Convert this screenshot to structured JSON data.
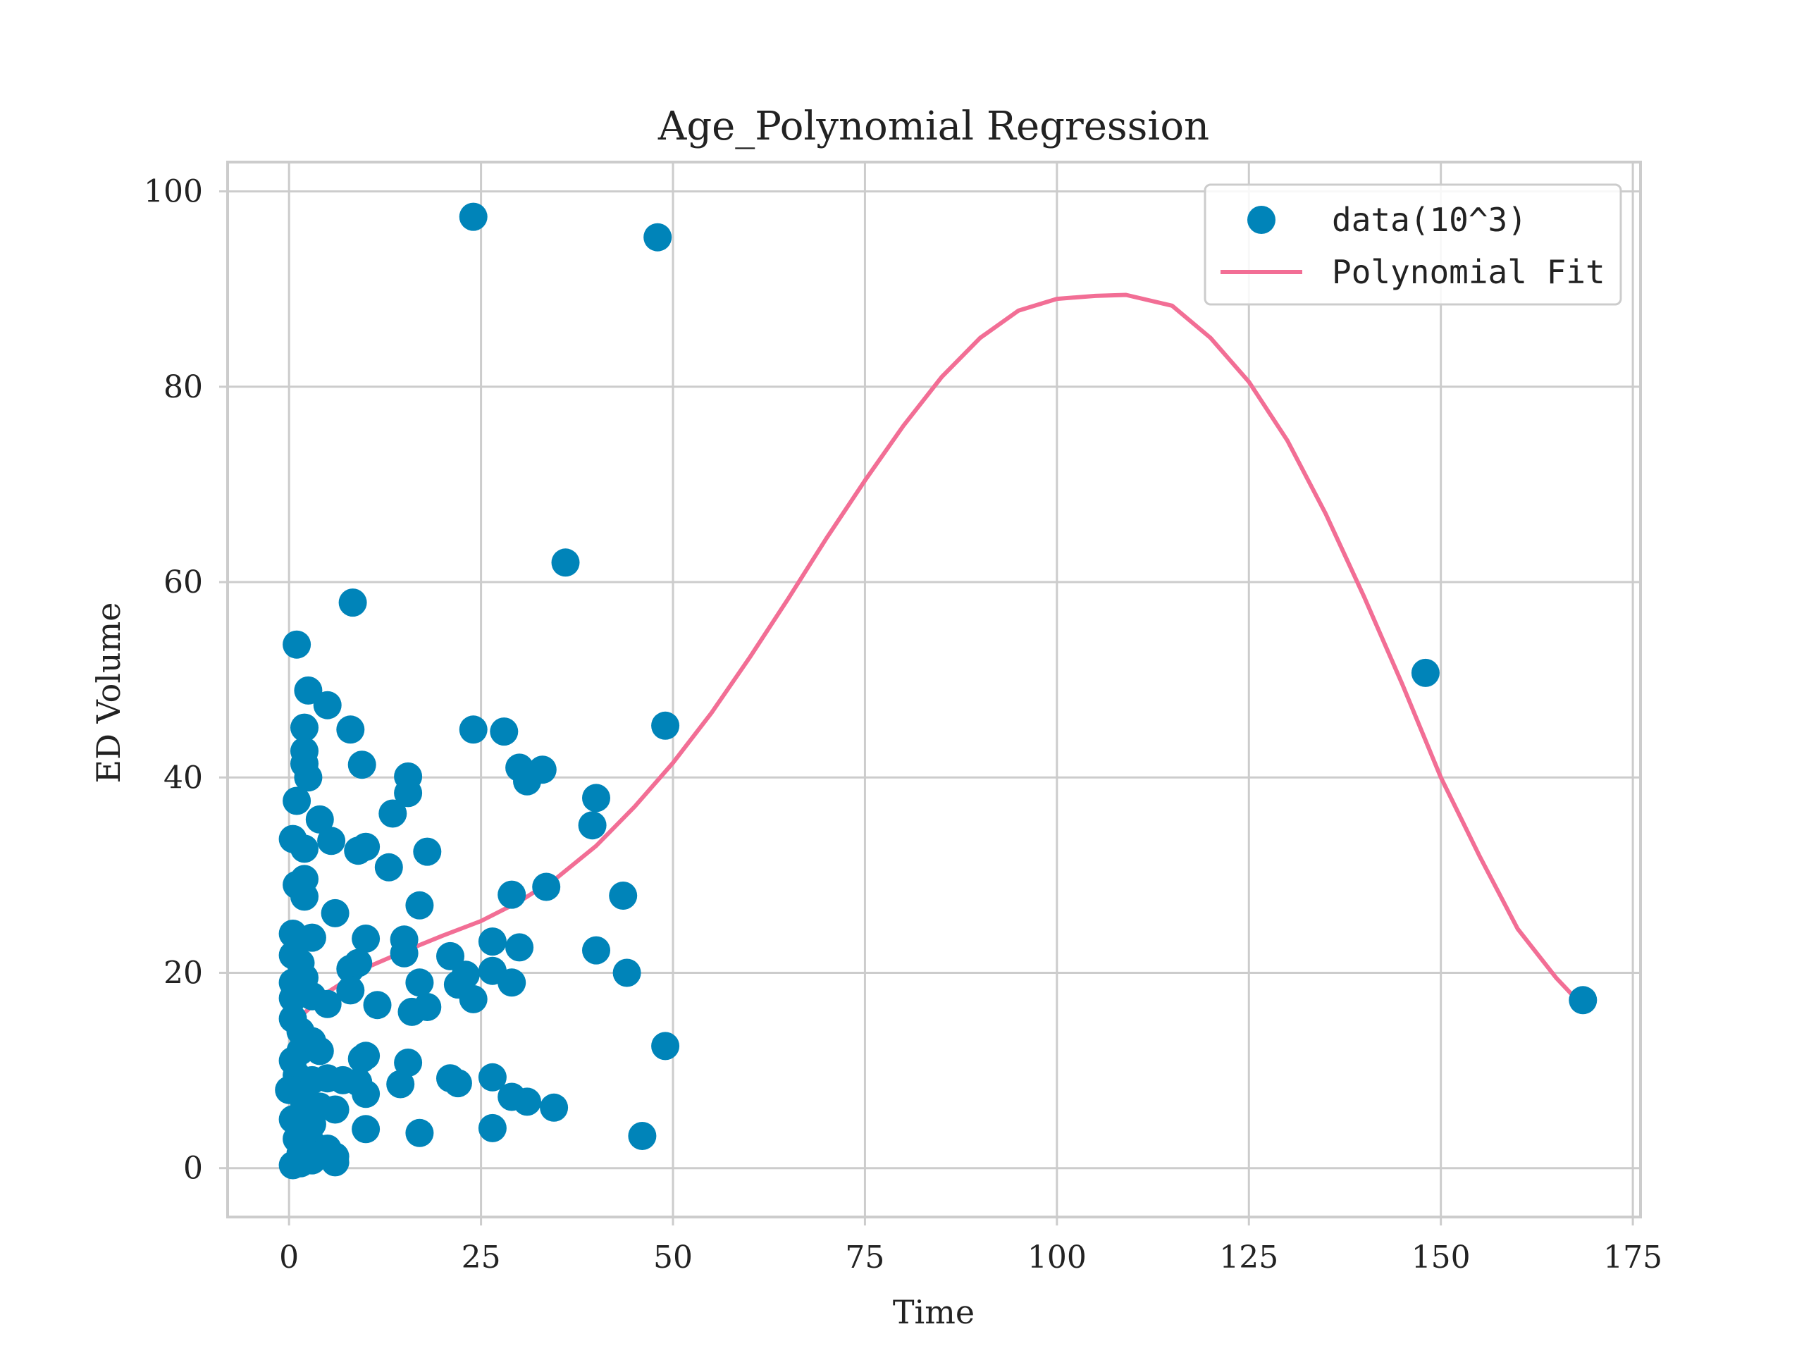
{
  "chart_data": {
    "type": "scatter",
    "title": "Age_Polynomial Regression",
    "xlabel": "Time",
    "ylabel": "ED Volume",
    "xlim": [
      -8,
      176
    ],
    "ylim": [
      -5,
      103
    ],
    "xticks": [
      0,
      25,
      50,
      75,
      100,
      125,
      150,
      175
    ],
    "yticks": [
      0,
      20,
      40,
      60,
      80,
      100
    ],
    "grid": true,
    "legend_position": "top-right",
    "colors": {
      "scatter": "#0084b9",
      "fit": "#f26e95",
      "grid": "#cccccc"
    },
    "series": [
      {
        "name": "data(10^3)",
        "kind": "scatter",
        "points": [
          [
            24,
            97.4
          ],
          [
            48,
            95.3
          ],
          [
            36,
            62
          ],
          [
            8.3,
            57.9
          ],
          [
            1,
            53.6
          ],
          [
            2.5,
            48.9
          ],
          [
            5,
            47.4
          ],
          [
            2,
            45.1
          ],
          [
            8,
            44.9
          ],
          [
            24,
            44.9
          ],
          [
            28,
            44.7
          ],
          [
            49,
            45.3
          ],
          [
            2,
            42.7
          ],
          [
            2,
            41.4
          ],
          [
            2.5,
            40
          ],
          [
            9.5,
            41.3
          ],
          [
            15.5,
            40.1
          ],
          [
            30,
            41
          ],
          [
            31,
            39.6
          ],
          [
            33,
            40.8
          ],
          [
            15.5,
            38.4
          ],
          [
            1,
            37.6
          ],
          [
            40,
            37.9
          ],
          [
            4,
            35.7
          ],
          [
            13.5,
            36.3
          ],
          [
            39.5,
            35.1
          ],
          [
            0.5,
            33.7
          ],
          [
            2,
            32.7
          ],
          [
            5.5,
            33.5
          ],
          [
            9,
            32.5
          ],
          [
            10,
            32.9
          ],
          [
            13,
            30.8
          ],
          [
            18,
            32.4
          ],
          [
            1,
            29
          ],
          [
            2,
            29.6
          ],
          [
            2,
            27.8
          ],
          [
            6,
            26.1
          ],
          [
            17,
            26.9
          ],
          [
            29,
            28
          ],
          [
            33.5,
            28.8
          ],
          [
            43.5,
            27.9
          ],
          [
            0.5,
            24
          ],
          [
            3,
            23.6
          ],
          [
            10,
            23.5
          ],
          [
            15,
            23.4
          ],
          [
            26.5,
            23.2
          ],
          [
            30,
            22.6
          ],
          [
            0.5,
            21.8
          ],
          [
            1.5,
            21
          ],
          [
            8,
            20.4
          ],
          [
            9,
            21
          ],
          [
            15,
            22
          ],
          [
            21,
            21.7
          ],
          [
            23,
            19.8
          ],
          [
            26.5,
            20.2
          ],
          [
            40,
            22.3
          ],
          [
            44,
            20
          ],
          [
            0.5,
            19
          ],
          [
            2,
            19.5
          ],
          [
            8,
            18.2
          ],
          [
            17,
            19
          ],
          [
            22,
            18.8
          ],
          [
            29,
            19
          ],
          [
            0.5,
            17.4
          ],
          [
            3,
            17.6
          ],
          [
            5,
            16.8
          ],
          [
            11.5,
            16.7
          ],
          [
            16,
            16
          ],
          [
            18,
            16.5
          ],
          [
            24,
            17.3
          ],
          [
            0.5,
            15.3
          ],
          [
            1.5,
            14
          ],
          [
            3,
            13
          ],
          [
            0.5,
            11
          ],
          [
            1.5,
            12
          ],
          [
            4,
            12
          ],
          [
            9.5,
            11.2
          ],
          [
            10,
            11.5
          ],
          [
            15.5,
            10.8
          ],
          [
            49,
            12.5
          ],
          [
            1,
            9.5
          ],
          [
            3,
            9
          ],
          [
            5,
            9.2
          ],
          [
            7,
            9
          ],
          [
            9,
            8.8
          ],
          [
            14.5,
            8.6
          ],
          [
            21,
            9.2
          ],
          [
            22,
            8.7
          ],
          [
            26.5,
            9.3
          ],
          [
            0,
            8
          ],
          [
            2,
            7.5
          ],
          [
            10,
            7.6
          ],
          [
            29,
            7.3
          ],
          [
            31,
            6.8
          ],
          [
            2,
            6.5
          ],
          [
            4,
            6.3
          ],
          [
            6,
            6
          ],
          [
            34.5,
            6.2
          ],
          [
            0.5,
            5
          ],
          [
            3,
            4.5
          ],
          [
            10,
            4
          ],
          [
            17,
            3.6
          ],
          [
            26.5,
            4.1
          ],
          [
            46,
            3.3
          ],
          [
            1,
            3
          ],
          [
            3,
            2.5
          ],
          [
            5,
            2
          ],
          [
            1.5,
            1.5
          ],
          [
            2.5,
            1.2
          ],
          [
            4,
            1.4
          ],
          [
            6,
            1.2
          ],
          [
            0.5,
            0.3
          ],
          [
            1.5,
            0.5
          ],
          [
            3,
            0.8
          ],
          [
            6,
            0.6
          ],
          [
            148,
            50.7
          ],
          [
            168.5,
            17.2
          ]
        ]
      },
      {
        "name": "Polynomial Fit",
        "kind": "line",
        "points": [
          [
            0,
            14.5
          ],
          [
            5,
            18
          ],
          [
            10,
            20.5
          ],
          [
            15,
            22.2
          ],
          [
            20,
            23.8
          ],
          [
            25,
            25.3
          ],
          [
            30,
            27.3
          ],
          [
            35,
            29.8
          ],
          [
            40,
            33
          ],
          [
            45,
            37
          ],
          [
            50,
            41.5
          ],
          [
            55,
            46.6
          ],
          [
            60,
            52.3
          ],
          [
            65,
            58.3
          ],
          [
            70,
            64.5
          ],
          [
            75,
            70.4
          ],
          [
            80,
            76
          ],
          [
            85,
            81
          ],
          [
            90,
            85
          ],
          [
            95,
            87.8
          ],
          [
            100,
            89
          ],
          [
            105,
            89.3
          ],
          [
            109,
            89.4
          ],
          [
            115,
            88.3
          ],
          [
            120,
            85
          ],
          [
            125,
            80.5
          ],
          [
            130,
            74.5
          ],
          [
            135,
            67
          ],
          [
            140,
            58.5
          ],
          [
            145,
            49.5
          ],
          [
            150,
            40
          ],
          [
            155,
            32
          ],
          [
            160,
            24.5
          ],
          [
            165,
            19.5
          ],
          [
            168,
            17
          ]
        ]
      }
    ]
  }
}
